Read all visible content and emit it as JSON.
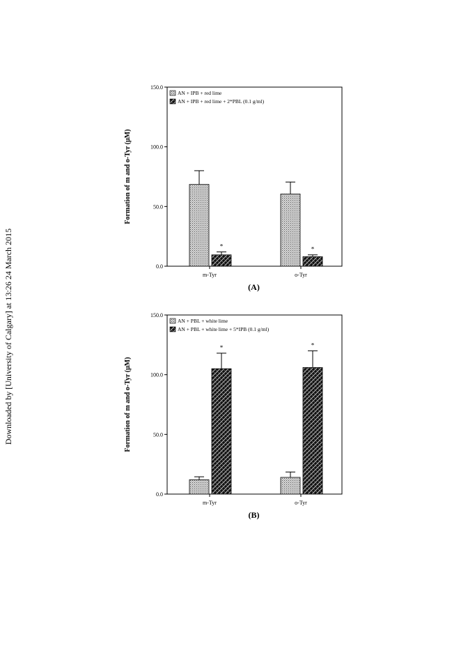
{
  "watermark": "Downloaded by [University of Calgary] at 13:26 24 March 2015",
  "chart_data": [
    {
      "type": "bar",
      "panel_label": "(A)",
      "ylabel": "Formation of m and o-Tyr (μM)",
      "xlabel": "",
      "ylim": [
        0,
        150
      ],
      "yticks": [
        "0.0",
        "50.0",
        "100.0",
        "150.0"
      ],
      "categories": [
        "m-Tyr",
        "o-Tyr"
      ],
      "series": [
        {
          "name": "AN + IPB + red lime",
          "values": [
            68.5,
            60.5
          ],
          "errors": [
            11.5,
            10.0
          ],
          "pattern": "dots",
          "marks": [
            "",
            ""
          ]
        },
        {
          "name": "AN + IPB + red lime + 2*PBL (0.1 g/ml)",
          "values": [
            9.5,
            8.0
          ],
          "errors": [
            2.5,
            1.5
          ],
          "pattern": "checker",
          "marks": [
            "*",
            "*"
          ]
        }
      ],
      "legend_position": "top-left",
      "grid": false
    },
    {
      "type": "bar",
      "panel_label": "(B)",
      "ylabel": "Formation of m and o-Tyr (μM)",
      "xlabel": "",
      "ylim": [
        0,
        150
      ],
      "yticks": [
        "0.0",
        "50.0",
        "100.0",
        "150.0"
      ],
      "categories": [
        "m-Tyr",
        "o-Tyr"
      ],
      "series": [
        {
          "name": "AN + PBL + white lime",
          "values": [
            12.0,
            14.0
          ],
          "errors": [
            2.5,
            4.5
          ],
          "pattern": "dots",
          "marks": [
            "",
            ""
          ]
        },
        {
          "name": "AN + PBL + white lime + 5*IPB (0.1 g/ml)",
          "values": [
            105.0,
            106.0
          ],
          "errors": [
            13.0,
            14.0
          ],
          "pattern": "checker",
          "marks": [
            "*",
            "*"
          ]
        }
      ],
      "legend_position": "top-left",
      "grid": false
    }
  ]
}
